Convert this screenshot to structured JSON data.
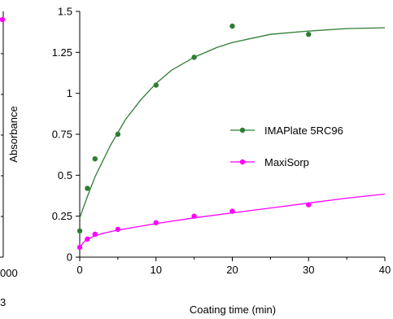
{
  "chart_data": {
    "type": "scatter",
    "title": "",
    "xlabel": "Coating time (min)",
    "ylabel": "Absorbance",
    "xlim": [
      0,
      40
    ],
    "ylim": [
      0,
      1.5
    ],
    "x_ticks": [
      0,
      10,
      20,
      30,
      40
    ],
    "y_ticks": [
      0,
      0.25,
      0.5,
      0.75,
      1,
      1.25,
      1.5
    ],
    "x_tick_labels": [
      "0",
      "10",
      "20",
      "30",
      "40"
    ],
    "y_tick_labels": [
      "0",
      "0.25",
      "0.5",
      "0.75",
      "1",
      "1.25",
      "1.5"
    ],
    "grid": false,
    "legend_position": "right",
    "series": [
      {
        "name": "IMAPlate 5RC96",
        "color": "#2e7d32",
        "points": [
          [
            0,
            0.16
          ],
          [
            1,
            0.42
          ],
          [
            2,
            0.6
          ],
          [
            5,
            0.75
          ],
          [
            10,
            1.05
          ],
          [
            15,
            1.22
          ],
          [
            20,
            1.41
          ],
          [
            30,
            1.36
          ]
        ],
        "fit": [
          [
            0,
            0.24
          ],
          [
            1,
            0.37
          ],
          [
            2,
            0.49
          ],
          [
            4,
            0.68
          ],
          [
            6,
            0.84
          ],
          [
            8,
            0.96
          ],
          [
            10,
            1.06
          ],
          [
            12,
            1.14
          ],
          [
            15,
            1.22
          ],
          [
            18,
            1.28
          ],
          [
            20,
            1.31
          ],
          [
            25,
            1.36
          ],
          [
            30,
            1.38
          ],
          [
            35,
            1.395
          ],
          [
            40,
            1.4
          ]
        ]
      },
      {
        "name": "MaxiSorp",
        "color": "#ff00ff",
        "points": [
          [
            0,
            0.06
          ],
          [
            1,
            0.11
          ],
          [
            2,
            0.14
          ],
          [
            5,
            0.17
          ],
          [
            10,
            0.21
          ],
          [
            15,
            0.25
          ],
          [
            20,
            0.28
          ],
          [
            30,
            0.32
          ]
        ],
        "fit": [
          [
            0,
            0.06
          ],
          [
            0.5,
            0.09
          ],
          [
            1,
            0.11
          ],
          [
            2,
            0.13
          ],
          [
            3,
            0.145
          ],
          [
            5,
            0.165
          ],
          [
            7.5,
            0.185
          ],
          [
            10,
            0.205
          ],
          [
            15,
            0.24
          ],
          [
            20,
            0.27
          ],
          [
            25,
            0.3
          ],
          [
            30,
            0.33
          ],
          [
            35,
            0.36
          ],
          [
            40,
            0.385
          ]
        ]
      }
    ],
    "left_panel": {
      "x_tick_label_fragment": "000",
      "x_label_fragment": "3",
      "edge_point_y": 1.45,
      "edge_point_color": "#ff00ff"
    }
  }
}
